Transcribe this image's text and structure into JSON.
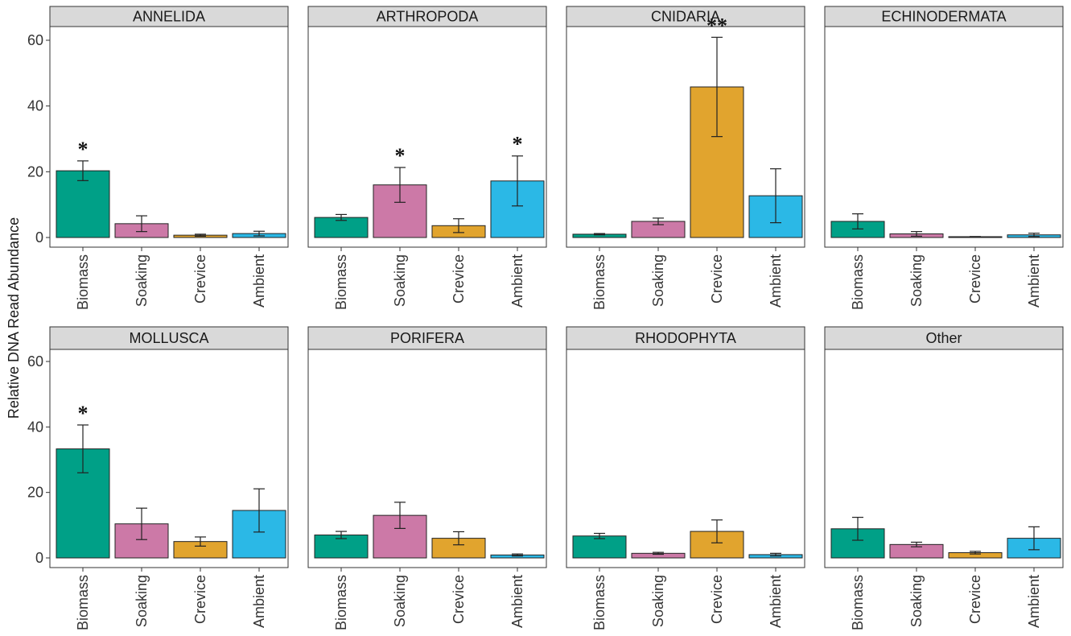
{
  "chart_data": {
    "type": "bar",
    "layout": "faceted grid, 2 rows x 4 columns, shared y axis",
    "ylabel": "Relative DNA Read Abundance",
    "xlabel": "",
    "ylim": [
      0,
      64
    ],
    "yticks": [
      0,
      20,
      40,
      60
    ],
    "grid": false,
    "legend": "none",
    "categories": [
      "Biomass",
      "Soaking",
      "Crevice",
      "Ambient"
    ],
    "colors": {
      "Biomass": "#00A087",
      "Soaking": "#CC79A7",
      "Crevice": "#E1A42E",
      "Ambient": "#2BB8E6"
    },
    "error_bars": "mean ± error (whiskers)",
    "panels": [
      {
        "title": "ANNELIDA",
        "values": [
          20.3,
          4.2,
          0.7,
          1.2
        ],
        "err_low": [
          17.3,
          1.8,
          0.4,
          0.5
        ],
        "err_high": [
          23.3,
          6.6,
          1.0,
          1.9
        ],
        "sig": [
          "*",
          "",
          "",
          ""
        ]
      },
      {
        "title": "ARTHROPODA",
        "values": [
          6.1,
          16.0,
          3.6,
          17.2
        ],
        "err_low": [
          5.2,
          10.7,
          1.5,
          9.6
        ],
        "err_high": [
          7.0,
          21.3,
          5.7,
          24.8
        ],
        "sig": [
          "",
          "*",
          "",
          "*"
        ]
      },
      {
        "title": "CNIDARIA",
        "values": [
          1.0,
          4.9,
          45.8,
          12.7
        ],
        "err_low": [
          0.8,
          3.9,
          30.7,
          4.5
        ],
        "err_high": [
          1.2,
          5.9,
          60.9,
          20.9
        ],
        "sig": [
          "",
          "",
          "**",
          ""
        ]
      },
      {
        "title": "ECHINODERMATA",
        "values": [
          4.9,
          1.1,
          0.2,
          0.8
        ],
        "err_low": [
          2.6,
          0.4,
          0.1,
          0.3
        ],
        "err_high": [
          7.2,
          1.8,
          0.3,
          1.3
        ],
        "sig": [
          "",
          "",
          "",
          ""
        ]
      },
      {
        "title": "MOLLUSCA",
        "values": [
          33.3,
          10.4,
          5.0,
          14.5
        ],
        "err_low": [
          26.0,
          5.6,
          3.6,
          7.9
        ],
        "err_high": [
          40.6,
          15.2,
          6.4,
          21.1
        ],
        "sig": [
          "*",
          "",
          "",
          ""
        ]
      },
      {
        "title": "PORIFERA",
        "values": [
          7.0,
          13.0,
          6.0,
          0.9
        ],
        "err_low": [
          5.9,
          9.0,
          4.0,
          0.6
        ],
        "err_high": [
          8.1,
          17.0,
          8.0,
          1.2
        ],
        "sig": [
          "",
          "",
          "",
          ""
        ]
      },
      {
        "title": "RHODOPHYTA",
        "values": [
          6.7,
          1.4,
          8.1,
          1.0
        ],
        "err_low": [
          5.9,
          1.1,
          4.6,
          0.6
        ],
        "err_high": [
          7.5,
          1.7,
          11.6,
          1.4
        ],
        "sig": [
          "",
          "",
          "",
          ""
        ]
      },
      {
        "title": "Other",
        "values": [
          8.9,
          4.1,
          1.6,
          6.0
        ],
        "err_low": [
          5.4,
          3.4,
          1.2,
          2.5
        ],
        "err_high": [
          12.4,
          4.8,
          2.0,
          9.5
        ],
        "sig": [
          "",
          "",
          "",
          ""
        ]
      }
    ]
  }
}
